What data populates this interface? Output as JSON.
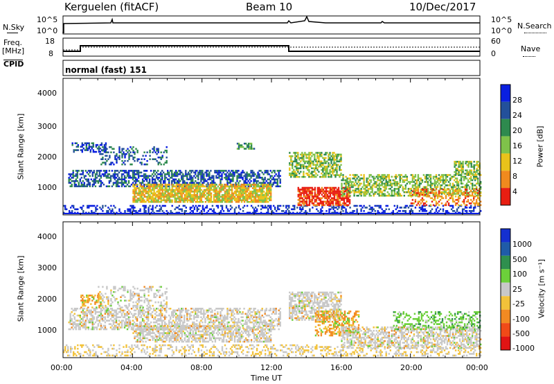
{
  "header": {
    "station": "Kerguelen (fitACF)",
    "beam": "Beam 10",
    "date": "10/Dec/2017"
  },
  "panels": {
    "nsky_label": "N.Sky",
    "nsearch_label": "N.Search",
    "nsky_ticks": [
      "10^5",
      "10^0"
    ],
    "nsearch_ticks": [
      "10^5",
      "10^0"
    ],
    "freq_label_1": "Freq.",
    "freq_label_2": "[MHz]",
    "freq_ticks": [
      "18",
      "8"
    ],
    "nave_label": "Nave",
    "nave_ticks": [
      "60",
      "0"
    ],
    "cpid_label": "CPID",
    "cpid_text": "normal (fast) 151"
  },
  "chart_data": [
    {
      "type": "heatmap",
      "name": "power",
      "ylabel": "Slant Range [km]",
      "yticks": [
        "4000",
        "3000",
        "2000",
        "1000"
      ],
      "ylim": [
        180,
        4500
      ],
      "colorbar_label": "Power [dB]",
      "colorbar_ticks": [
        "28",
        "24",
        "20",
        "16",
        "12",
        "8",
        "4"
      ],
      "colors": [
        "#0a1fe0",
        "#23509a",
        "#2e8a4e",
        "#7fc24a",
        "#e9c21a",
        "#f08a1e",
        "#e81e12"
      ]
    },
    {
      "type": "heatmap",
      "name": "velocity",
      "ylabel": "Slant Range [km]",
      "yticks": [
        "4000",
        "3000",
        "2000",
        "1000"
      ],
      "ylim": [
        180,
        4500
      ],
      "colorbar_label": "Velocity [m s⁻¹]",
      "colorbar_ticks": [
        "1000",
        "500",
        "100",
        "25",
        "-25",
        "-100",
        "-500",
        "-1000"
      ],
      "colors": [
        "#1530d0",
        "#1f5ba8",
        "#2f8f4e",
        "#6cd03a",
        "#c8c8c8",
        "#f2c23a",
        "#f28a22",
        "#f04a18",
        "#e01414"
      ]
    }
  ],
  "xaxis": {
    "label": "Time UT",
    "ticks": [
      "00:00",
      "04:00",
      "08:00",
      "12:00",
      "16:00",
      "20:00",
      "00:00"
    ]
  }
}
